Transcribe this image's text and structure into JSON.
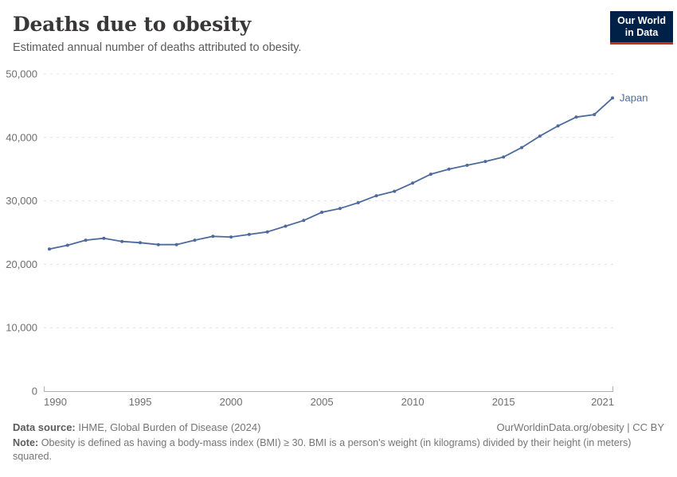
{
  "header": {
    "title": "Deaths due to obesity",
    "subtitle": "Estimated annual number of deaths attributed to obesity."
  },
  "logo": {
    "line1": "Our World",
    "line2": "in Data",
    "bg_color": "#002147",
    "accent_color": "#c52e1b"
  },
  "chart_data": {
    "type": "line",
    "title": "Deaths due to obesity",
    "subtitle": "Estimated annual number of deaths attributed to obesity.",
    "x": [
      1990,
      1991,
      1992,
      1993,
      1994,
      1995,
      1996,
      1997,
      1998,
      1999,
      2000,
      2001,
      2002,
      2003,
      2004,
      2005,
      2006,
      2007,
      2008,
      2009,
      2010,
      2011,
      2012,
      2013,
      2014,
      2015,
      2016,
      2017,
      2018,
      2019,
      2020,
      2021
    ],
    "series": [
      {
        "name": "Japan",
        "color": "#4c6a9c",
        "values": [
          22400,
          23000,
          23800,
          24100,
          23600,
          23400,
          23100,
          23100,
          23800,
          24400,
          24300,
          24700,
          25100,
          26000,
          26900,
          28200,
          28800,
          29700,
          30800,
          31500,
          32800,
          34200,
          35000,
          35600,
          36200,
          36900,
          38400,
          40200,
          41800,
          43200,
          43600,
          46200
        ]
      }
    ],
    "x_ticks": [
      1990,
      1995,
      2000,
      2005,
      2010,
      2015,
      2021
    ],
    "y_ticks": [
      0,
      10000,
      20000,
      30000,
      40000,
      50000
    ],
    "xlim": [
      1990,
      2021
    ],
    "ylim": [
      0,
      50000
    ],
    "grid": "horizontal-dashed",
    "legend": "entity-label-at-line-end",
    "grid_color": "#e0e0e0",
    "axis_color": "#b0b0b0",
    "tick_label_color": "#6e6e6e"
  },
  "footer": {
    "datasource_label": "Data source:",
    "datasource_text": "IHME, Global Burden of Disease (2024)",
    "rights": "OurWorldinData.org/obesity | CC BY",
    "note_label": "Note:",
    "note_text": "Obesity is defined as having a body-mass index (BMI) ≥ 30. BMI is a person's weight (in kilograms) divided by their height (in meters) squared."
  }
}
